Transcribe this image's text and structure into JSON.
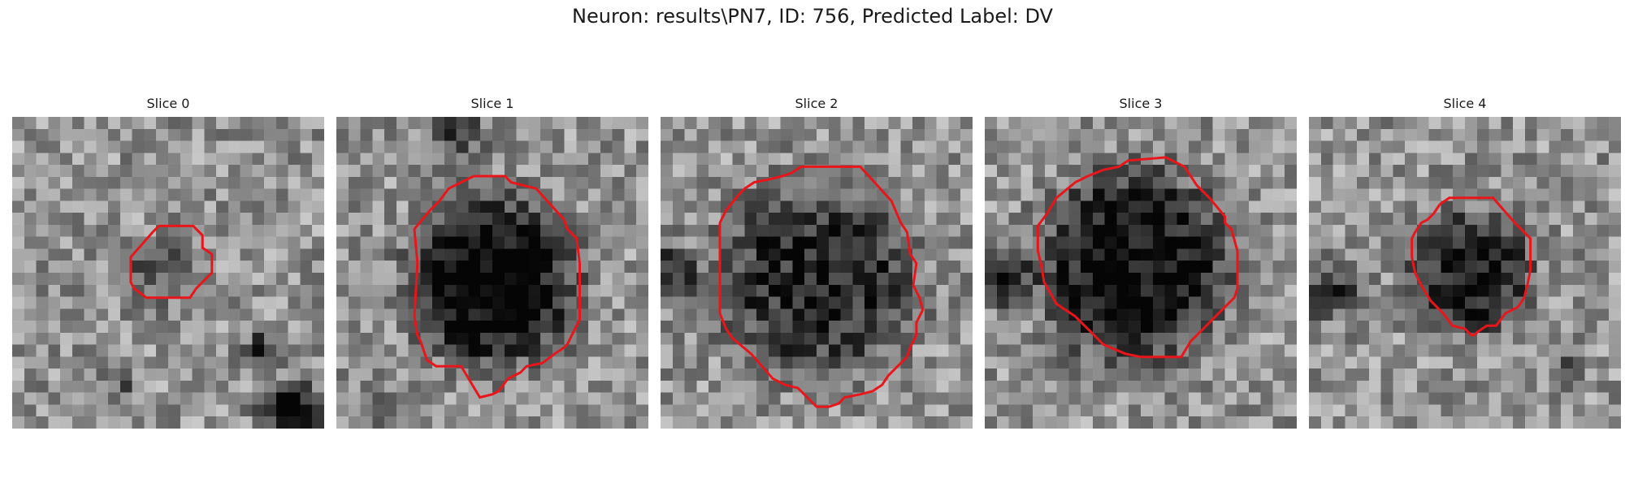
{
  "figure": {
    "title": "Neuron: results\\PN7, ID: 756, Predicted Label: DV"
  },
  "panels": [
    {
      "label": "Slice 0",
      "colormap": "gray",
      "image": {
        "grid": 26,
        "seed": 101,
        "blob_center": [
          0.48,
          0.5
        ],
        "blob_radius": 0.11,
        "blob_depth": 0.22,
        "extra_dark": [
          {
            "c": [
              0.9,
              0.95
            ],
            "r": 0.09,
            "d": 0.75
          },
          {
            "c": [
              0.79,
              0.74
            ],
            "r": 0.04,
            "d": 0.55
          },
          {
            "c": [
              0.35,
              0.86
            ],
            "r": 0.05,
            "d": 0.25
          }
        ]
      },
      "contour": [
        [
          0.47,
          0.35
        ],
        [
          0.58,
          0.35
        ],
        [
          0.61,
          0.38
        ],
        [
          0.61,
          0.42
        ],
        [
          0.64,
          0.44
        ],
        [
          0.64,
          0.5
        ],
        [
          0.59,
          0.55
        ],
        [
          0.57,
          0.58
        ],
        [
          0.43,
          0.58
        ],
        [
          0.39,
          0.55
        ],
        [
          0.38,
          0.53
        ],
        [
          0.38,
          0.45
        ],
        [
          0.45,
          0.37
        ]
      ],
      "contour_color": "#e8161b"
    },
    {
      "label": "Slice 1",
      "colormap": "gray",
      "image": {
        "grid": 26,
        "seed": 202,
        "blob_center": [
          0.5,
          0.53
        ],
        "blob_radius": 0.27,
        "blob_depth": 0.6,
        "extra_dark": [
          {
            "c": [
              0.38,
              0.04
            ],
            "r": 0.1,
            "d": 0.3
          },
          {
            "c": [
              0.14,
              0.96
            ],
            "r": 0.06,
            "d": 0.35
          }
        ]
      },
      "contour": [
        [
          0.44,
          0.19
        ],
        [
          0.54,
          0.19
        ],
        [
          0.56,
          0.21
        ],
        [
          0.64,
          0.23
        ],
        [
          0.73,
          0.33
        ],
        [
          0.74,
          0.36
        ],
        [
          0.77,
          0.39
        ],
        [
          0.78,
          0.47
        ],
        [
          0.78,
          0.65
        ],
        [
          0.74,
          0.73
        ],
        [
          0.73,
          0.74
        ],
        [
          0.7,
          0.76
        ],
        [
          0.66,
          0.79
        ],
        [
          0.61,
          0.8
        ],
        [
          0.6,
          0.81
        ],
        [
          0.59,
          0.82
        ],
        [
          0.55,
          0.84
        ],
        [
          0.52,
          0.88
        ],
        [
          0.5,
          0.89
        ],
        [
          0.46,
          0.9
        ],
        [
          0.4,
          0.8
        ],
        [
          0.35,
          0.8
        ],
        [
          0.32,
          0.8
        ],
        [
          0.29,
          0.78
        ],
        [
          0.27,
          0.72
        ],
        [
          0.26,
          0.7
        ],
        [
          0.25,
          0.64
        ],
        [
          0.26,
          0.47
        ],
        [
          0.25,
          0.36
        ],
        [
          0.3,
          0.3
        ],
        [
          0.33,
          0.27
        ],
        [
          0.36,
          0.23
        ],
        [
          0.4,
          0.21
        ],
        [
          0.42,
          0.2
        ]
      ],
      "contour_color": "#e8161b"
    },
    {
      "label": "Slice 2",
      "colormap": "gray",
      "image": {
        "grid": 26,
        "seed": 303,
        "blob_center": [
          0.5,
          0.52
        ],
        "blob_radius": 0.32,
        "blob_depth": 0.42,
        "extra_dark": [
          {
            "c": [
              0.03,
              0.5
            ],
            "r": 0.08,
            "d": 0.5
          }
        ]
      },
      "contour": [
        [
          0.42,
          0.18
        ],
        [
          0.45,
          0.16
        ],
        [
          0.64,
          0.16
        ],
        [
          0.74,
          0.27
        ],
        [
          0.77,
          0.34
        ],
        [
          0.79,
          0.37
        ],
        [
          0.8,
          0.44
        ],
        [
          0.82,
          0.47
        ],
        [
          0.81,
          0.54
        ],
        [
          0.83,
          0.58
        ],
        [
          0.84,
          0.62
        ],
        [
          0.82,
          0.66
        ],
        [
          0.82,
          0.7
        ],
        [
          0.8,
          0.74
        ],
        [
          0.79,
          0.77
        ],
        [
          0.76,
          0.8
        ],
        [
          0.73,
          0.83
        ],
        [
          0.71,
          0.86
        ],
        [
          0.68,
          0.88
        ],
        [
          0.64,
          0.89
        ],
        [
          0.59,
          0.9
        ],
        [
          0.57,
          0.92
        ],
        [
          0.54,
          0.93
        ],
        [
          0.5,
          0.93
        ],
        [
          0.44,
          0.87
        ],
        [
          0.4,
          0.86
        ],
        [
          0.36,
          0.84
        ],
        [
          0.29,
          0.76
        ],
        [
          0.23,
          0.71
        ],
        [
          0.21,
          0.68
        ],
        [
          0.19,
          0.63
        ],
        [
          0.19,
          0.34
        ],
        [
          0.21,
          0.3
        ],
        [
          0.25,
          0.25
        ],
        [
          0.27,
          0.23
        ],
        [
          0.3,
          0.21
        ],
        [
          0.35,
          0.2
        ],
        [
          0.39,
          0.19
        ]
      ],
      "contour_color": "#e8161b"
    },
    {
      "label": "Slice 3",
      "colormap": "gray",
      "image": {
        "grid": 26,
        "seed": 404,
        "blob_center": [
          0.48,
          0.48
        ],
        "blob_radius": 0.31,
        "blob_depth": 0.55,
        "extra_dark": [
          {
            "c": [
              0.05,
              0.52
            ],
            "r": 0.08,
            "d": 0.55
          }
        ]
      },
      "contour": [
        [
          0.38,
          0.17
        ],
        [
          0.43,
          0.16
        ],
        [
          0.46,
          0.14
        ],
        [
          0.58,
          0.13
        ],
        [
          0.64,
          0.16
        ],
        [
          0.68,
          0.22
        ],
        [
          0.72,
          0.26
        ],
        [
          0.77,
          0.32
        ],
        [
          0.77,
          0.34
        ],
        [
          0.79,
          0.36
        ],
        [
          0.81,
          0.43
        ],
        [
          0.81,
          0.55
        ],
        [
          0.8,
          0.58
        ],
        [
          0.77,
          0.61
        ],
        [
          0.73,
          0.65
        ],
        [
          0.69,
          0.69
        ],
        [
          0.66,
          0.72
        ],
        [
          0.63,
          0.77
        ],
        [
          0.58,
          0.77
        ],
        [
          0.54,
          0.77
        ],
        [
          0.5,
          0.77
        ],
        [
          0.45,
          0.76
        ],
        [
          0.38,
          0.73
        ],
        [
          0.35,
          0.7
        ],
        [
          0.29,
          0.64
        ],
        [
          0.23,
          0.6
        ],
        [
          0.19,
          0.53
        ],
        [
          0.18,
          0.47
        ],
        [
          0.17,
          0.43
        ],
        [
          0.17,
          0.38
        ],
        [
          0.17,
          0.35
        ],
        [
          0.2,
          0.31
        ],
        [
          0.23,
          0.26
        ],
        [
          0.29,
          0.21
        ],
        [
          0.33,
          0.19
        ]
      ],
      "contour_color": "#e8161b"
    },
    {
      "label": "Slice 4",
      "colormap": "gray",
      "image": {
        "grid": 26,
        "seed": 505,
        "blob_center": [
          0.52,
          0.5
        ],
        "blob_radius": 0.2,
        "blob_depth": 0.48,
        "extra_dark": [
          {
            "c": [
              0.07,
              0.57
            ],
            "r": 0.08,
            "d": 0.45
          },
          {
            "c": [
              0.83,
              0.82
            ],
            "r": 0.04,
            "d": 0.4
          },
          {
            "c": [
              0.52,
              0.19
            ],
            "r": 0.04,
            "d": 0.4
          }
        ]
      },
      "contour": [
        [
          0.42,
          0.28
        ],
        [
          0.45,
          0.26
        ],
        [
          0.51,
          0.26
        ],
        [
          0.59,
          0.26
        ],
        [
          0.66,
          0.34
        ],
        [
          0.71,
          0.39
        ],
        [
          0.71,
          0.49
        ],
        [
          0.7,
          0.54
        ],
        [
          0.69,
          0.58
        ],
        [
          0.67,
          0.61
        ],
        [
          0.63,
          0.63
        ],
        [
          0.6,
          0.67
        ],
        [
          0.57,
          0.67
        ],
        [
          0.54,
          0.69
        ],
        [
          0.53,
          0.7
        ],
        [
          0.52,
          0.7
        ],
        [
          0.5,
          0.68
        ],
        [
          0.46,
          0.67
        ],
        [
          0.43,
          0.63
        ],
        [
          0.39,
          0.59
        ],
        [
          0.36,
          0.54
        ],
        [
          0.34,
          0.5
        ],
        [
          0.33,
          0.45
        ],
        [
          0.33,
          0.39
        ],
        [
          0.34,
          0.37
        ],
        [
          0.36,
          0.34
        ],
        [
          0.38,
          0.33
        ],
        [
          0.4,
          0.31
        ]
      ],
      "contour_color": "#e8161b"
    }
  ]
}
